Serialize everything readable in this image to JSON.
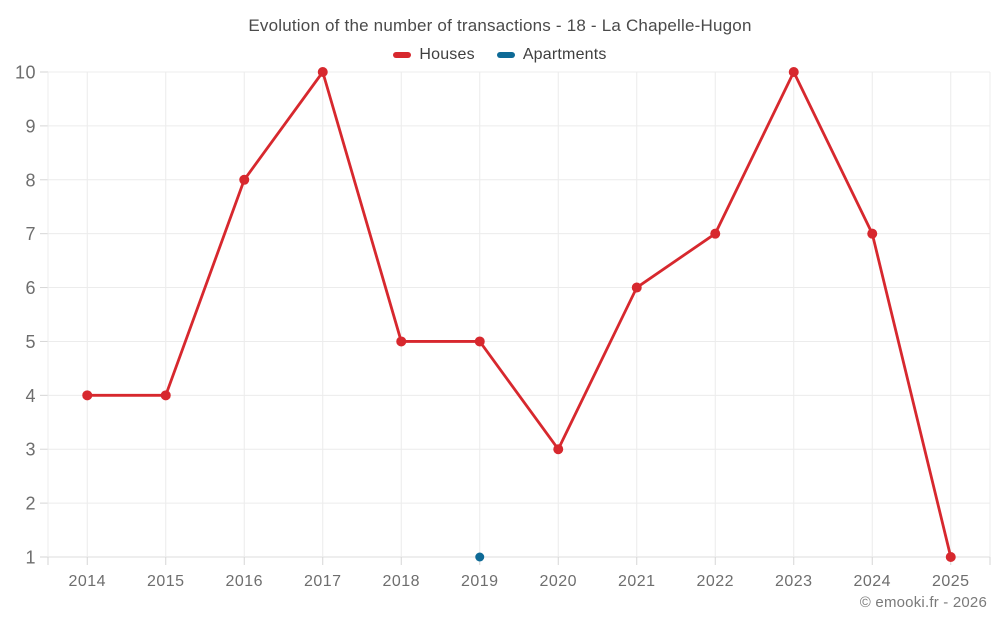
{
  "header": {
    "title": "Evolution of the number of transactions - 18 - La Chapelle-Hugon"
  },
  "legend": {
    "items": [
      {
        "label": "Houses",
        "color": "#d7282e"
      },
      {
        "label": "Apartments",
        "color": "#0e6a96"
      }
    ]
  },
  "footer": {
    "credit": "© emooki.fr - 2026"
  },
  "chart_data": {
    "type": "line",
    "title": "Evolution of the number of transactions - 18 - La Chapelle-Hugon",
    "categories": [
      "2014",
      "2015",
      "2016",
      "2017",
      "2018",
      "2019",
      "2020",
      "2021",
      "2022",
      "2023",
      "2024",
      "2025"
    ],
    "series": [
      {
        "name": "Houses",
        "color": "#d7282e",
        "marker_radius": 5,
        "values": [
          4,
          4,
          8,
          10,
          5,
          5,
          3,
          6,
          7,
          10,
          7,
          1
        ]
      },
      {
        "name": "Apartments",
        "color": "#0e6a96",
        "marker_radius": 4.5,
        "values": [
          null,
          null,
          null,
          null,
          null,
          1,
          null,
          null,
          null,
          null,
          null,
          null
        ]
      }
    ],
    "xlabel": "",
    "ylabel": "",
    "ylim": [
      1,
      10
    ],
    "yticks": [
      1,
      2,
      3,
      4,
      5,
      6,
      7,
      8,
      9,
      10
    ],
    "grid": true,
    "legend_position": "top",
    "line_width": 2.8,
    "style": {
      "gridline_color": "#ececec",
      "axis_line_color": "#dddddd",
      "tick_color": "#d6d6d6",
      "x_label_color": "#6e6e6e",
      "y_label_color": "#6e6e6e"
    }
  }
}
